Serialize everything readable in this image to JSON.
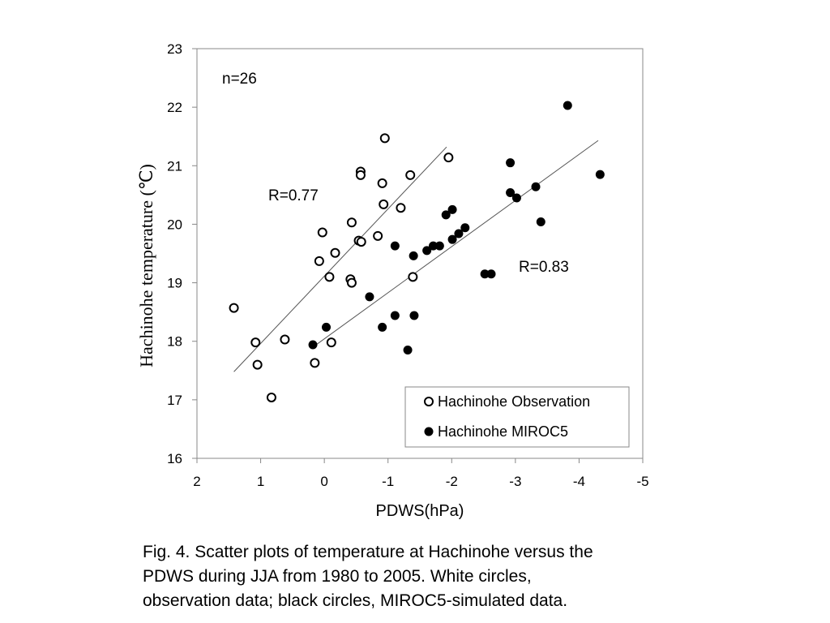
{
  "chart_data": {
    "type": "scatter",
    "xlabel": "PDWS(hPa)",
    "ylabel": "Hachinohe temperature (℃)",
    "xlim": [
      2,
      -5
    ],
    "ylim": [
      16,
      23
    ],
    "x_ticks": [
      2,
      1,
      0,
      -1,
      -2,
      -3,
      -4,
      -5
    ],
    "y_ticks": [
      16,
      17,
      18,
      19,
      20,
      21,
      22,
      23
    ],
    "grid": false,
    "legend_position": "bottom-right",
    "annotations": [
      "n=26",
      "R=0.77",
      "R=0.83"
    ],
    "series": [
      {
        "name": "Hachinohe Observation",
        "marker": "open-circle",
        "color": "#000000",
        "points": [
          [
            1.42,
            18.57
          ],
          [
            1.08,
            17.98
          ],
          [
            1.05,
            17.6
          ],
          [
            0.62,
            18.03
          ],
          [
            0.83,
            17.04
          ],
          [
            0.15,
            17.63
          ],
          [
            0.08,
            19.37
          ],
          [
            0.03,
            19.86
          ],
          [
            -0.08,
            19.1
          ],
          [
            -0.11,
            17.98
          ],
          [
            -0.17,
            19.51
          ],
          [
            -0.41,
            19.06
          ],
          [
            -0.43,
            19.0
          ],
          [
            -0.43,
            20.03
          ],
          [
            -0.54,
            19.72
          ],
          [
            -0.58,
            19.7
          ],
          [
            -0.57,
            20.9
          ],
          [
            -0.57,
            20.84
          ],
          [
            -0.84,
            19.8
          ],
          [
            -0.91,
            20.7
          ],
          [
            -0.93,
            20.34
          ],
          [
            -0.95,
            21.47
          ],
          [
            -1.2,
            20.28
          ],
          [
            -1.35,
            20.84
          ],
          [
            -1.39,
            19.1
          ],
          [
            -1.95,
            21.14
          ]
        ]
      },
      {
        "name": "Hachinohe MIROC5",
        "marker": "filled-circle",
        "color": "#000000",
        "points": [
          [
            0.18,
            17.94
          ],
          [
            -0.03,
            18.24
          ],
          [
            -0.71,
            18.76
          ],
          [
            -0.91,
            18.24
          ],
          [
            -1.11,
            18.44
          ],
          [
            -1.11,
            19.63
          ],
          [
            -1.31,
            17.85
          ],
          [
            -1.4,
            19.46
          ],
          [
            -1.41,
            18.44
          ],
          [
            -1.61,
            19.55
          ],
          [
            -1.71,
            19.63
          ],
          [
            -1.81,
            19.63
          ],
          [
            -1.91,
            20.16
          ],
          [
            -2.01,
            20.25
          ],
          [
            -2.01,
            19.74
          ],
          [
            -2.11,
            19.84
          ],
          [
            -2.21,
            19.94
          ],
          [
            -2.52,
            19.15
          ],
          [
            -2.62,
            19.15
          ],
          [
            -2.92,
            21.05
          ],
          [
            -2.92,
            20.54
          ],
          [
            -3.02,
            20.45
          ],
          [
            -3.32,
            20.64
          ],
          [
            -3.4,
            20.04
          ],
          [
            -3.82,
            22.03
          ],
          [
            -4.33,
            20.85
          ]
        ]
      }
    ],
    "trend_lines": [
      {
        "series": "Hachinohe Observation",
        "from": [
          1.42,
          17.48
        ],
        "to": [
          -1.92,
          21.32
        ]
      },
      {
        "series": "Hachinohe MIROC5",
        "from": [
          0.18,
          17.9
        ],
        "to": [
          -4.3,
          21.43
        ]
      }
    ]
  },
  "caption": {
    "lines": [
      "Fig. 4. Scatter plots of temperature at Hachinohe versus the",
      "PDWS during JJA from 1980 to 2005. White circles,",
      "observation data; black circles, MIROC5-simulated data."
    ]
  }
}
